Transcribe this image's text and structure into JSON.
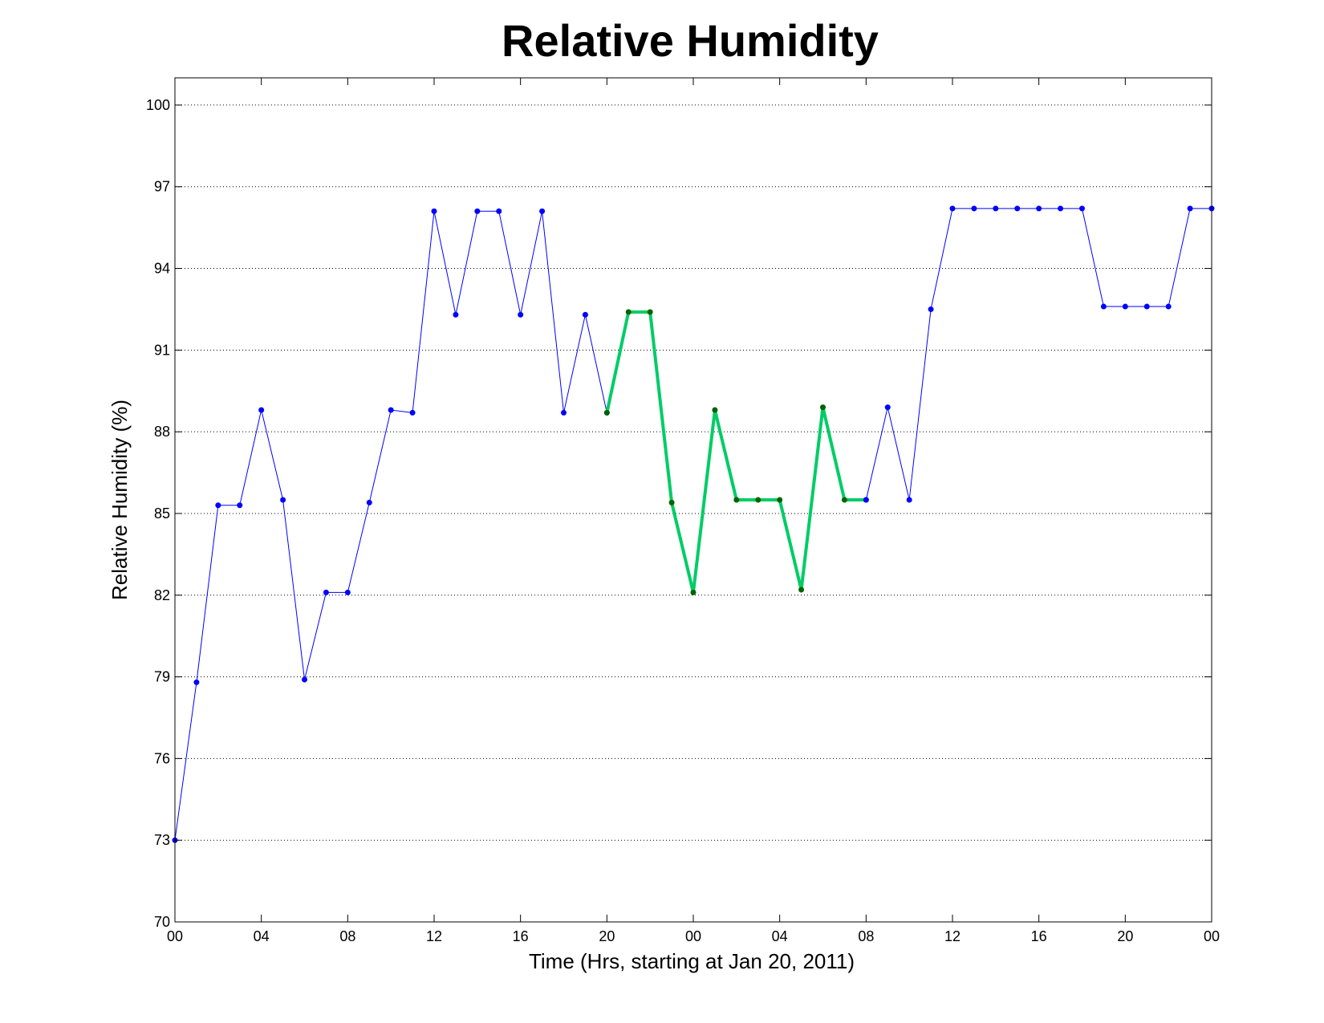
{
  "chart_data": {
    "type": "line",
    "title": "Relative Humidity",
    "xlabel": "Time (Hrs, starting at Jan 20, 2011)",
    "ylabel": "Relative Humidity (%)",
    "ylim": [
      70,
      101
    ],
    "yticks": [
      70,
      73,
      76,
      79,
      82,
      85,
      88,
      91,
      94,
      97,
      100
    ],
    "xlim": [
      "2011-01-20 00:00",
      "2011-01-22 00:00"
    ],
    "xticks": [
      {
        "time": "2011-01-20 00:00",
        "label": "00"
      },
      {
        "time": "2011-01-20 04:00",
        "label": "04"
      },
      {
        "time": "2011-01-20 08:00",
        "label": "08"
      },
      {
        "time": "2011-01-20 12:00",
        "label": "12"
      },
      {
        "time": "2011-01-20 16:00",
        "label": "16"
      },
      {
        "time": "2011-01-20 20:00",
        "label": "20"
      },
      {
        "time": "2011-01-21 00:00",
        "label": "00"
      },
      {
        "time": "2011-01-21 04:00",
        "label": "04"
      },
      {
        "time": "2011-01-21 08:00",
        "label": "08"
      },
      {
        "time": "2011-01-21 12:00",
        "label": "12"
      },
      {
        "time": "2011-01-21 16:00",
        "label": "16"
      },
      {
        "time": "2011-01-21 20:00",
        "label": "20"
      },
      {
        "time": "2011-01-22 00:00",
        "label": "00"
      }
    ],
    "grid": "y-dotted",
    "series": [
      {
        "color": "#0000ff",
        "highlight": false,
        "points": [
          {
            "x": "2011-01-20 00:00",
            "y": 73.0
          },
          {
            "x": "2011-01-20 01:00",
            "y": 78.8
          },
          {
            "x": "2011-01-20 02:00",
            "y": 85.3
          },
          {
            "x": "2011-01-20 03:00",
            "y": 85.3
          },
          {
            "x": "2011-01-20 04:00",
            "y": 88.8
          },
          {
            "x": "2011-01-20 05:00",
            "y": 85.5
          },
          {
            "x": "2011-01-20 06:00",
            "y": 78.9
          },
          {
            "x": "2011-01-20 07:00",
            "y": 82.1
          },
          {
            "x": "2011-01-20 08:00",
            "y": 82.1
          },
          {
            "x": "2011-01-20 09:00",
            "y": 85.4
          },
          {
            "x": "2011-01-20 10:00",
            "y": 88.8
          },
          {
            "x": "2011-01-20 11:00",
            "y": 88.7
          },
          {
            "x": "2011-01-20 12:00",
            "y": 96.1
          },
          {
            "x": "2011-01-20 13:00",
            "y": 92.3
          },
          {
            "x": "2011-01-20 14:00",
            "y": 96.1
          },
          {
            "x": "2011-01-20 15:00",
            "y": 96.1
          },
          {
            "x": "2011-01-20 16:00",
            "y": 92.3
          },
          {
            "x": "2011-01-20 17:00",
            "y": 96.1
          },
          {
            "x": "2011-01-20 18:00",
            "y": 88.7
          },
          {
            "x": "2011-01-20 19:00",
            "y": 92.3
          },
          {
            "x": "2011-01-20 20:00",
            "y": 88.7
          }
        ]
      },
      {
        "color": "#00cc66",
        "marker_color": "#006400",
        "highlight": true,
        "points": [
          {
            "x": "2011-01-20 20:00",
            "y": 88.7
          },
          {
            "x": "2011-01-20 21:00",
            "y": 92.4
          },
          {
            "x": "2011-01-20 22:00",
            "y": 92.4
          },
          {
            "x": "2011-01-20 23:00",
            "y": 85.4
          },
          {
            "x": "2011-01-21 00:00",
            "y": 82.1
          },
          {
            "x": "2011-01-21 01:00",
            "y": 88.8
          },
          {
            "x": "2011-01-21 02:00",
            "y": 85.5
          },
          {
            "x": "2011-01-21 03:00",
            "y": 85.5
          },
          {
            "x": "2011-01-21 04:00",
            "y": 85.5
          },
          {
            "x": "2011-01-21 05:00",
            "y": 82.2
          },
          {
            "x": "2011-01-21 06:00",
            "y": 88.9
          },
          {
            "x": "2011-01-21 07:00",
            "y": 85.5
          },
          {
            "x": "2011-01-21 08:00",
            "y": 85.5
          }
        ]
      },
      {
        "color": "#0000ff",
        "highlight": false,
        "points": [
          {
            "x": "2011-01-21 08:00",
            "y": 85.5
          },
          {
            "x": "2011-01-21 09:00",
            "y": 88.9
          },
          {
            "x": "2011-01-21 10:00",
            "y": 85.5
          },
          {
            "x": "2011-01-21 11:00",
            "y": 92.5
          },
          {
            "x": "2011-01-21 12:00",
            "y": 96.2
          },
          {
            "x": "2011-01-21 13:00",
            "y": 96.2
          },
          {
            "x": "2011-01-21 14:00",
            "y": 96.2
          },
          {
            "x": "2011-01-21 15:00",
            "y": 96.2
          },
          {
            "x": "2011-01-21 16:00",
            "y": 96.2
          },
          {
            "x": "2011-01-21 17:00",
            "y": 96.2
          },
          {
            "x": "2011-01-21 18:00",
            "y": 96.2
          },
          {
            "x": "2011-01-21 19:00",
            "y": 92.6
          },
          {
            "x": "2011-01-21 20:00",
            "y": 92.6
          },
          {
            "x": "2011-01-21 21:00",
            "y": 92.6
          },
          {
            "x": "2011-01-21 22:00",
            "y": 92.6
          },
          {
            "x": "2011-01-21 23:00",
            "y": 96.2
          },
          {
            "x": "2011-01-22 00:00",
            "y": 96.2
          }
        ]
      }
    ]
  }
}
